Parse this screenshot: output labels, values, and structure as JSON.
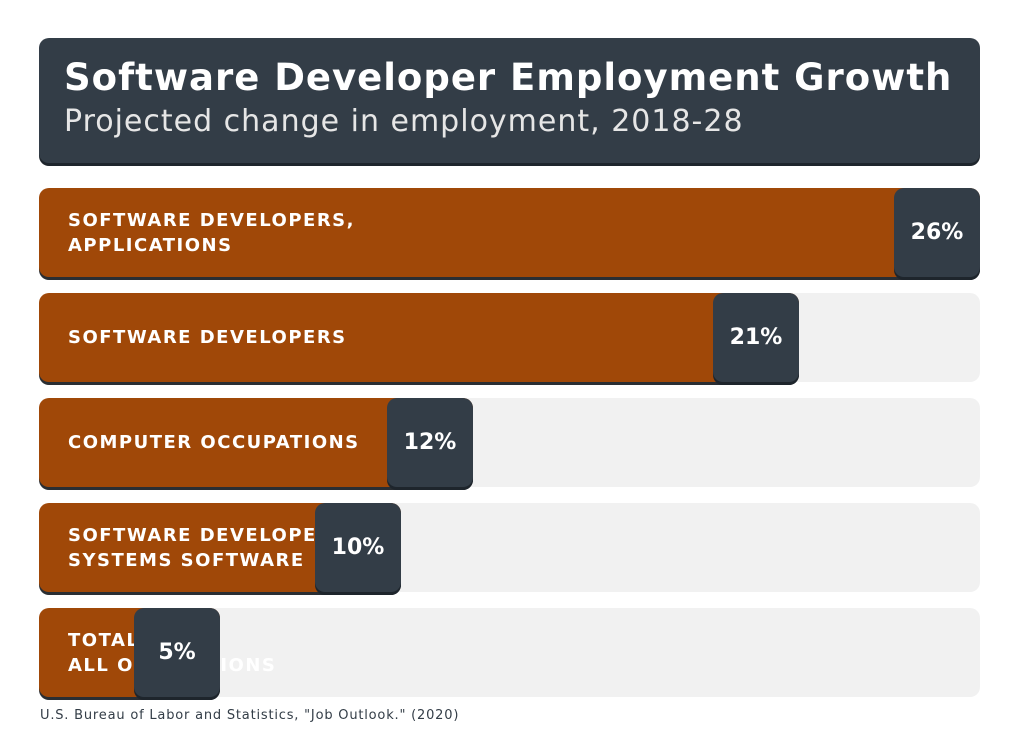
{
  "header": {
    "title": "Software Developer Employment Growth",
    "subtitle": "Projected change in employment, 2018-28"
  },
  "source": "U.S. Bureau of Labor and Statistics, \"Job Outlook.\" (2020)",
  "colors": {
    "bar": "#a04808",
    "badge": "#333d47",
    "track": "#f1f1f1"
  },
  "chart_data": {
    "type": "bar",
    "orientation": "horizontal",
    "title": "Software Developer Employment Growth",
    "subtitle": "Projected change in employment, 2018-28",
    "categories": [
      "SOFTWARE DEVELOPERS,\nAPPLICATIONS",
      "SOFTWARE DEVELOPERS",
      "COMPUTER OCCUPATIONS",
      "SOFTWARE DEVELOPERS,\nSYSTEMS SOFTWARE",
      "TOTAL,\nALL OCCUPATIONS"
    ],
    "values": [
      26,
      21,
      12,
      10,
      5
    ],
    "value_labels": [
      "26%",
      "21%",
      "12%",
      "10%",
      "5%"
    ],
    "xlim": [
      0,
      26
    ]
  }
}
